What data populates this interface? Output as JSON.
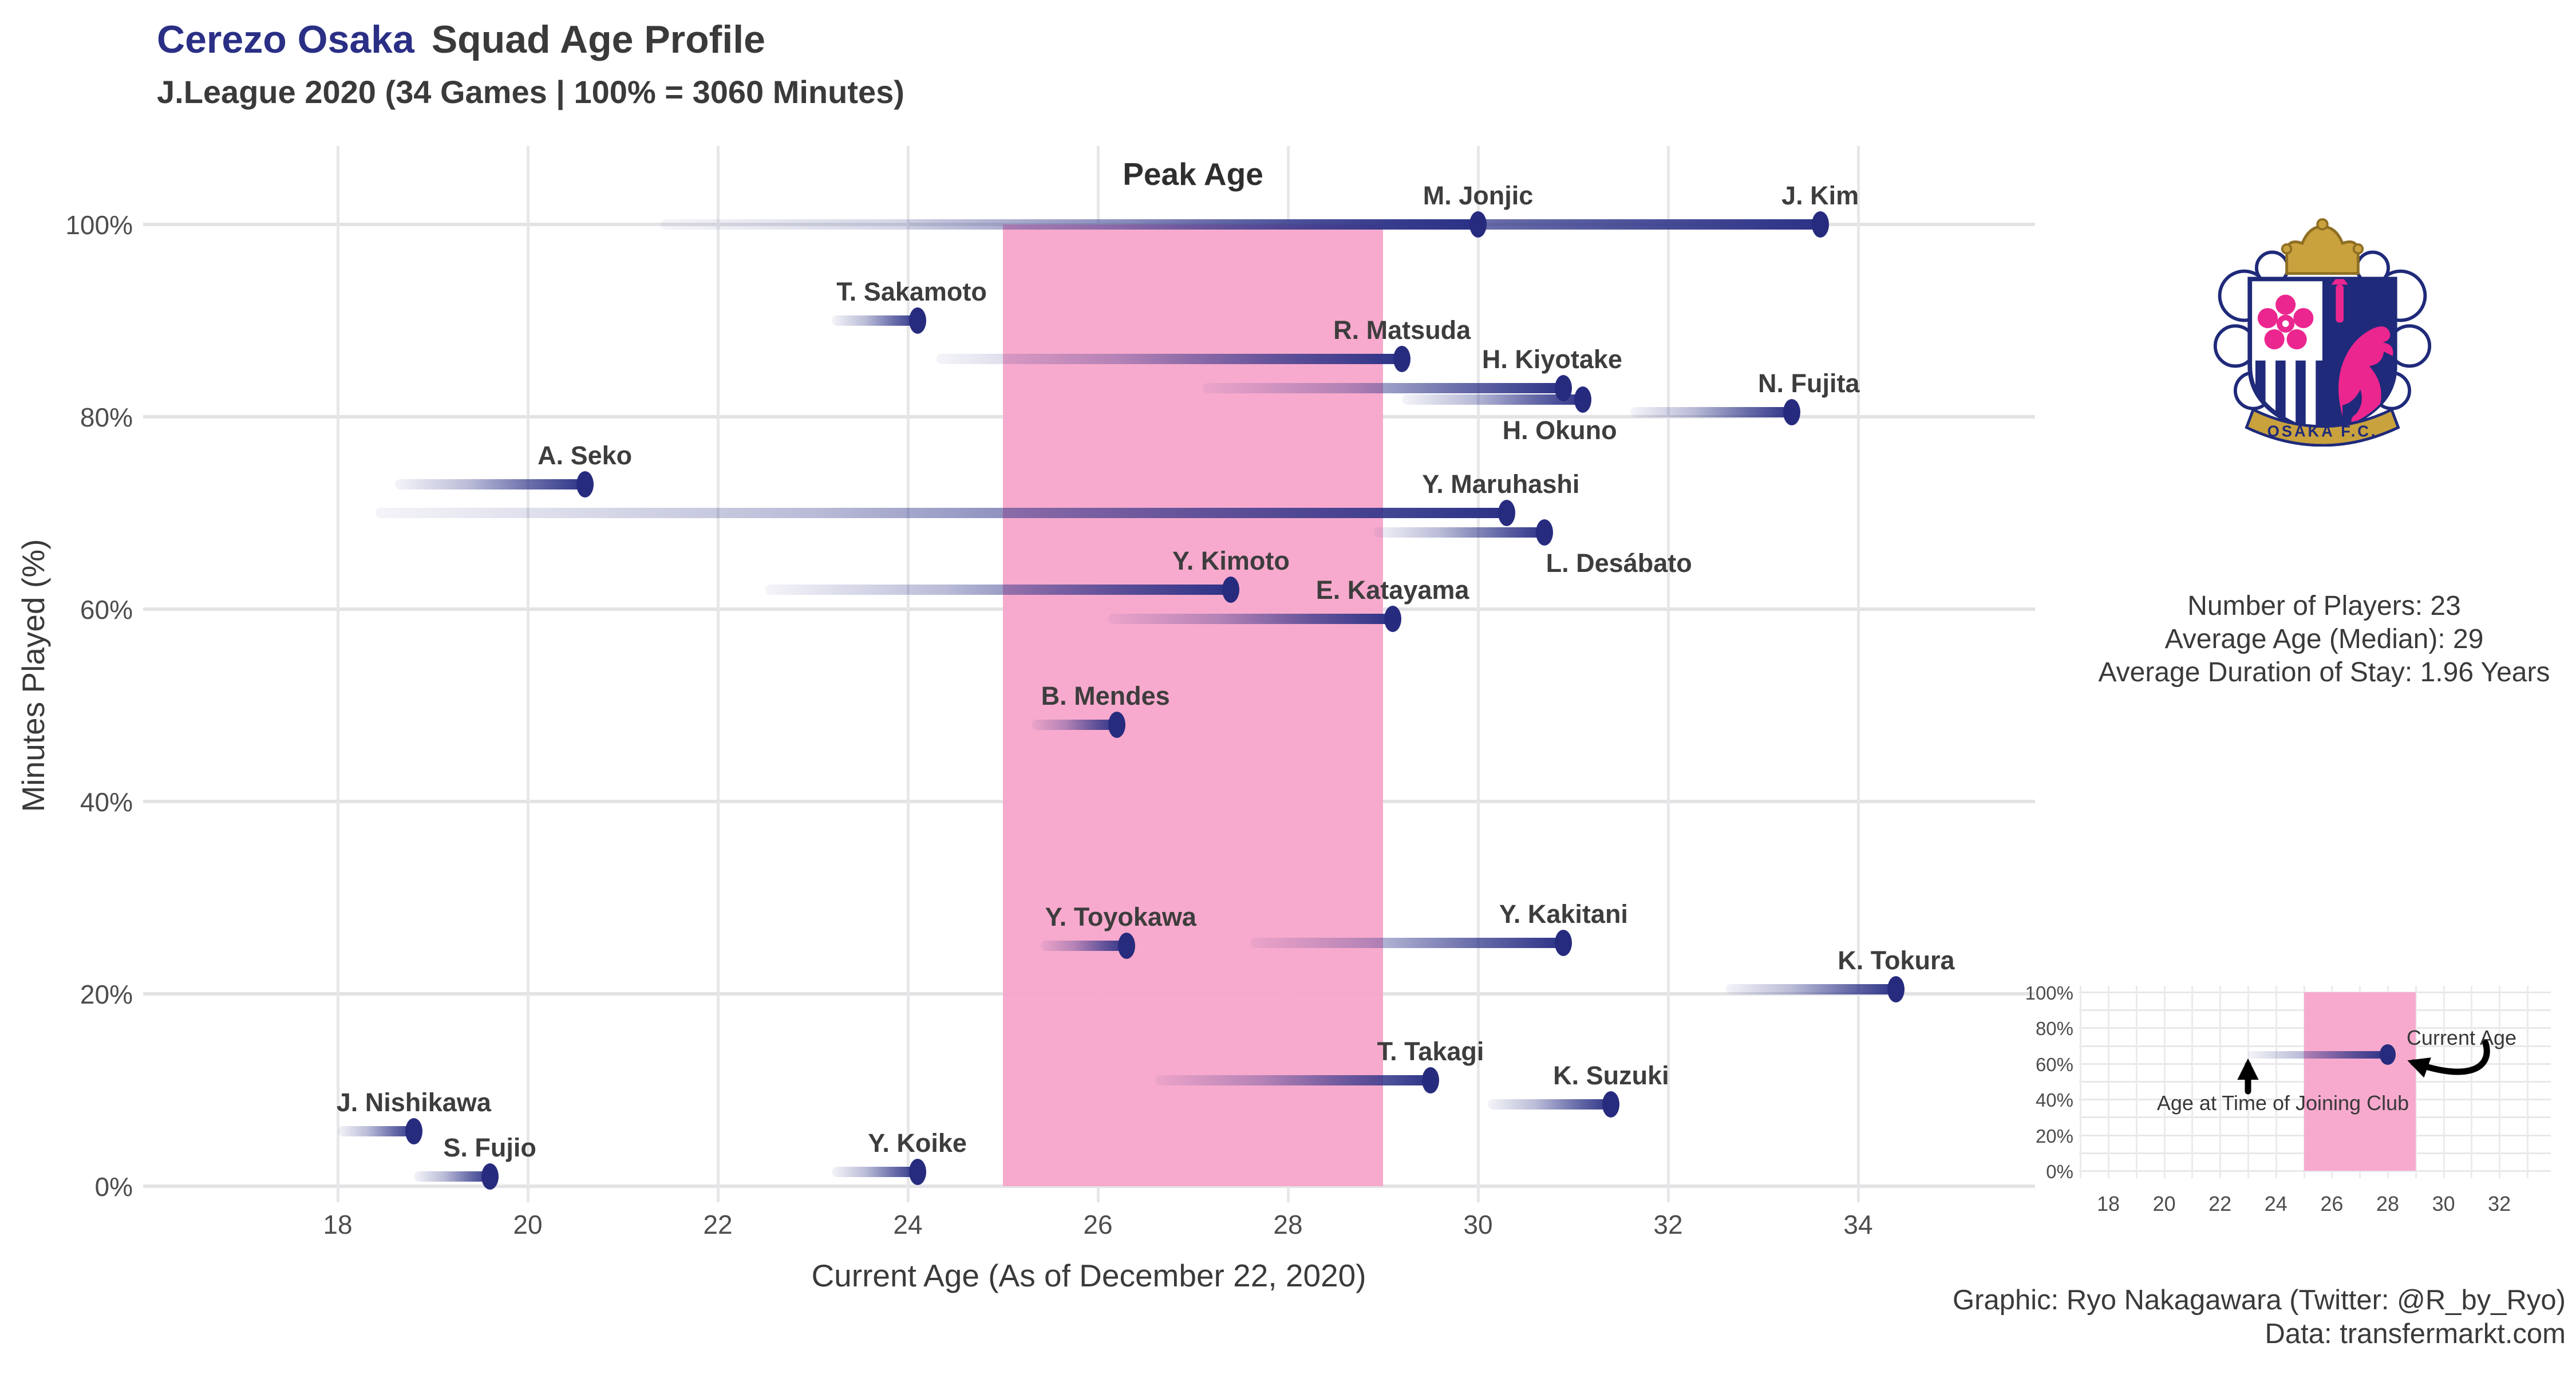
{
  "header": {
    "title_club": "Cerezo Osaka",
    "title_rest": "Squad Age Profile",
    "subtitle": "J.League 2020 (34 Games | 100% = 3060 Minutes)"
  },
  "colors": {
    "navy_dot": "#272b7e",
    "bar_navy": "#2b3186",
    "pink_band": "#f7a9cc",
    "title_navy": "#2a2f85",
    "text_dark": "#3a3a3a",
    "tick_gray": "#4d4d4d",
    "grid_gray": "#e5e5e8"
  },
  "chart_data": {
    "type": "scatter",
    "subtype": "dumbbell-lollipop",
    "title": "Cerezo Osaka Squad Age Profile",
    "subtitle": "J.League 2020 (34 Games | 100% = 3060 Minutes)",
    "xlabel": "Current Age (As of December 22, 2020)",
    "ylabel": "Minutes Played (%)",
    "x_ticks": [
      18,
      20,
      22,
      24,
      26,
      28,
      30,
      32,
      34
    ],
    "y_ticks_pct": [
      0,
      20,
      40,
      60,
      80,
      100
    ],
    "xlim": [
      16.0,
      35.9
    ],
    "ylim": [
      0,
      108
    ],
    "grid": "major-only",
    "legend_position": "none",
    "peak_age_band": {
      "label": "Peak Age",
      "from_age": 25,
      "to_age": 29
    },
    "players": [
      {
        "name": "J. Kim",
        "joined_age": 21.4,
        "current_age": 33.6,
        "minutes_pct": 100,
        "label": "above",
        "dx": 0
      },
      {
        "name": "M. Jonjic",
        "joined_age": 24.0,
        "current_age": 30.0,
        "minutes_pct": 100,
        "label": "above",
        "dx": 0
      },
      {
        "name": "T. Sakamoto",
        "joined_age": 23.2,
        "current_age": 24.1,
        "minutes_pct": 90,
        "label": "above",
        "dx": -10
      },
      {
        "name": "R. Matsuda",
        "joined_age": 24.3,
        "current_age": 29.2,
        "minutes_pct": 86,
        "label": "above",
        "dx": 0
      },
      {
        "name": "H. Kiyotake",
        "joined_age": 27.1,
        "current_age": 30.9,
        "minutes_pct": 83,
        "label": "above",
        "dx": -20
      },
      {
        "name": "H. Okuno",
        "joined_age": 29.2,
        "current_age": 31.1,
        "minutes_pct": 81.8,
        "label": "below",
        "dx": -40
      },
      {
        "name": "N. Fujita",
        "joined_age": 31.6,
        "current_age": 33.3,
        "minutes_pct": 80.5,
        "label": "above",
        "dx": 30
      },
      {
        "name": "A. Seko",
        "joined_age": 18.6,
        "current_age": 20.6,
        "minutes_pct": 73,
        "label": "above",
        "dx": 0
      },
      {
        "name": "Y. Maruhashi",
        "joined_age": 18.4,
        "current_age": 30.3,
        "minutes_pct": 70,
        "label": "above",
        "dx": -10
      },
      {
        "name": "L. Desábato",
        "joined_age": 28.9,
        "current_age": 30.7,
        "minutes_pct": 68,
        "label": "below",
        "dx": 130
      },
      {
        "name": "Y. Kimoto",
        "joined_age": 22.5,
        "current_age": 27.4,
        "minutes_pct": 62,
        "label": "above",
        "dx": 0
      },
      {
        "name": "E. Katayama",
        "joined_age": 26.1,
        "current_age": 29.1,
        "minutes_pct": 59,
        "label": "above",
        "dx": 0
      },
      {
        "name": "B. Mendes",
        "joined_age": 25.3,
        "current_age": 26.2,
        "minutes_pct": 48,
        "label": "above",
        "dx": -20
      },
      {
        "name": "Y. Toyokawa",
        "joined_age": 25.4,
        "current_age": 26.3,
        "minutes_pct": 25,
        "label": "above",
        "dx": -10
      },
      {
        "name": "Y. Kakitani",
        "joined_age": 27.6,
        "current_age": 30.9,
        "minutes_pct": 25.3,
        "label": "above",
        "dx": 0
      },
      {
        "name": "K. Tokura",
        "joined_age": 32.6,
        "current_age": 34.4,
        "minutes_pct": 20.5,
        "label": "above",
        "dx": 0
      },
      {
        "name": "T. Takagi",
        "joined_age": 26.6,
        "current_age": 29.5,
        "minutes_pct": 11,
        "label": "above",
        "dx": 0
      },
      {
        "name": "K. Suzuki",
        "joined_age": 30.1,
        "current_age": 31.4,
        "minutes_pct": 8.5,
        "label": "above",
        "dx": 0
      },
      {
        "name": "J. Nishikawa",
        "joined_age": 18.0,
        "current_age": 18.8,
        "minutes_pct": 5.7,
        "label": "above",
        "dx": 0
      },
      {
        "name": "S. Fujio",
        "joined_age": 18.8,
        "current_age": 19.6,
        "minutes_pct": 1,
        "label": "above",
        "dx": 0
      },
      {
        "name": "Y. Koike",
        "joined_age": 23.2,
        "current_age": 24.1,
        "minutes_pct": 1.5,
        "label": "above",
        "dx": 0
      }
    ]
  },
  "side_panel": {
    "crest_banner_text": "OSAKA F.C.",
    "stats": [
      "Number of Players: 23",
      "Average Age (Median): 29",
      "Average Duration of Stay: 1.96 Years"
    ]
  },
  "inset": {
    "x_ticks": [
      18,
      20,
      22,
      24,
      26,
      28,
      30,
      32
    ],
    "y_tick_labels": [
      "0%",
      "20%",
      "40%",
      "60%",
      "80%",
      "100%"
    ],
    "band": {
      "from_age": 25,
      "to_age": 29
    },
    "example": {
      "joined_age": 23,
      "current_age": 28,
      "minutes_pct": 65
    },
    "label_current_age": "Current Age",
    "label_joining_age": "Age at Time of Joining Club"
  },
  "credits": {
    "line1": "Graphic: Ryo Nakagawara (Twitter: @R_by_Ryo)",
    "line2": "Data: transfermarkt.com"
  }
}
